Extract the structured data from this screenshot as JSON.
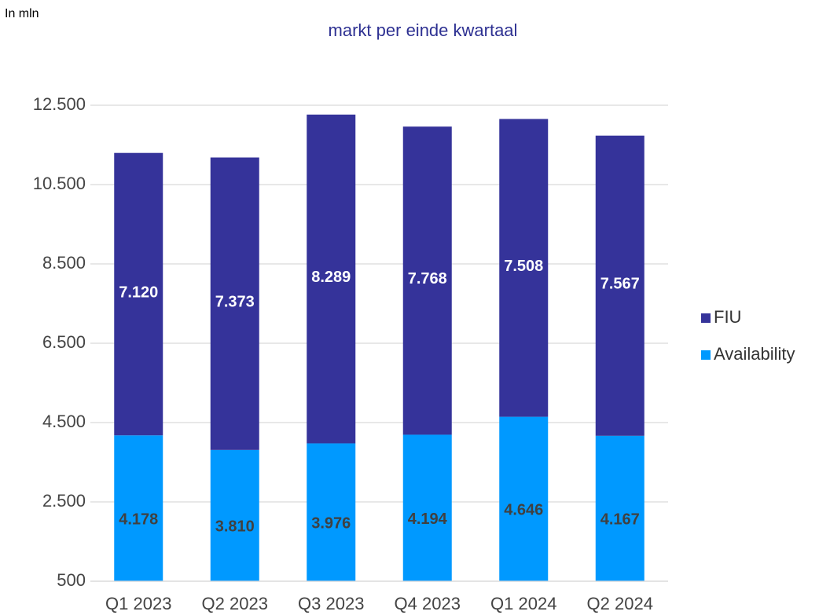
{
  "chart_data": {
    "type": "stacked_bar",
    "title": "markt per einde kwartaal",
    "unit_label": "In mln",
    "categories": [
      "Q1 2023",
      "Q2 2023",
      "Q3 2023",
      "Q4 2023",
      "Q1 2024",
      "Q2 2024"
    ],
    "series": [
      {
        "name": "Availability",
        "color": "#0099ff",
        "values": [
          4178,
          3810,
          3976,
          4194,
          4646,
          4167
        ],
        "value_labels": [
          "4.178",
          "3.810",
          "3.976",
          "4.194",
          "4.646",
          "4.167"
        ]
      },
      {
        "name": "FIU",
        "color": "#35339a",
        "values": [
          7120,
          7373,
          8289,
          7768,
          7508,
          7567
        ],
        "value_labels": [
          "7.120",
          "7.373",
          "8.289",
          "7.768",
          "7.508",
          "7.567"
        ]
      }
    ],
    "ylim": [
      500,
      12500
    ],
    "yticks": [
      {
        "value": 500,
        "label": "500"
      },
      {
        "value": 2500,
        "label": "2.500"
      },
      {
        "value": 4500,
        "label": "4.500"
      },
      {
        "value": 6500,
        "label": "6.500"
      },
      {
        "value": 8500,
        "label": "8.500"
      },
      {
        "value": 10500,
        "label": "10.500"
      },
      {
        "value": 12500,
        "label": "12.500"
      }
    ],
    "grid": true,
    "legend": "right"
  }
}
